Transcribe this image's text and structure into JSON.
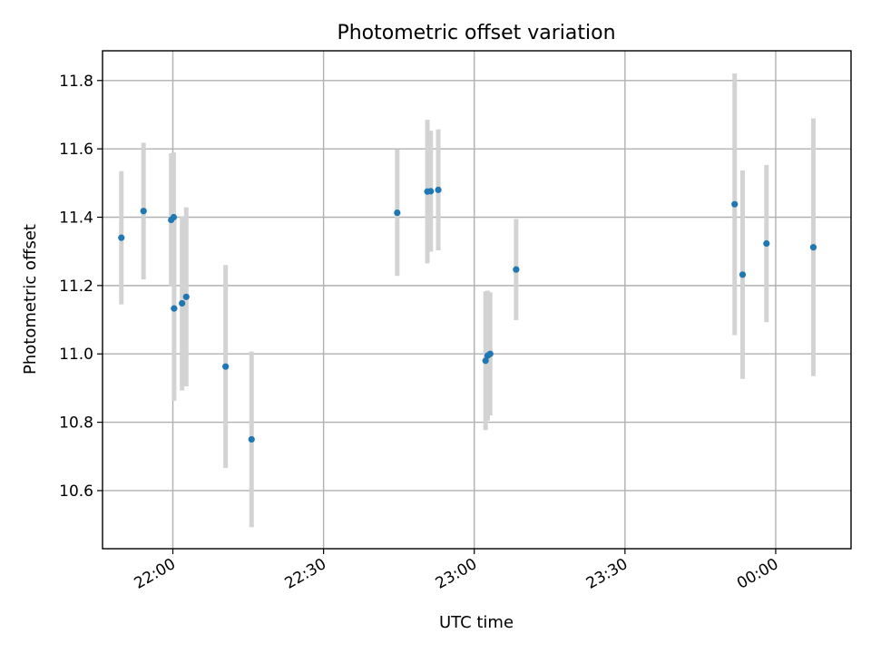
{
  "chart_data": {
    "type": "scatter",
    "title": "Photometric offset variation",
    "xlabel": "UTC time",
    "ylabel": "Photometric offset",
    "x_scale": "time",
    "xlim": [
      "21:46",
      "00:15"
    ],
    "ylim": [
      10.43,
      11.887
    ],
    "x_ticks": [
      {
        "value": "22:00",
        "label": "22:00"
      },
      {
        "value": "22:30",
        "label": "22:30"
      },
      {
        "value": "23:00",
        "label": "23:00"
      },
      {
        "value": "23:30",
        "label": "23:30"
      },
      {
        "value": "00:00",
        "label": "00:00"
      }
    ],
    "y_ticks": [
      {
        "value": 10.6,
        "label": "10.6"
      },
      {
        "value": 10.8,
        "label": "10.8"
      },
      {
        "value": 11.0,
        "label": "11.0"
      },
      {
        "value": 11.2,
        "label": "11.2"
      },
      {
        "value": 11.4,
        "label": "11.4"
      },
      {
        "value": 11.6,
        "label": "11.6"
      },
      {
        "value": 11.8,
        "label": "11.8"
      }
    ],
    "grid": true,
    "marker_color": "#1f77b4",
    "errorbar_color": "#d3d3d3",
    "points": [
      {
        "x": "21:49:45",
        "y": 11.34,
        "err": 0.195
      },
      {
        "x": "21:54:10",
        "y": 11.418,
        "err": 0.2
      },
      {
        "x": "21:59:40",
        "y": 11.392,
        "err": 0.195
      },
      {
        "x": "21:60:10",
        "y": 11.4,
        "err": 0.19
      },
      {
        "x": "22:00:15",
        "y": 11.133,
        "err": 0.27
      },
      {
        "x": "22:01:50",
        "y": 11.148,
        "err": 0.255
      },
      {
        "x": "22:02:40",
        "y": 11.167,
        "err": 0.262
      },
      {
        "x": "22:10:30",
        "y": 10.963,
        "err": 0.297
      },
      {
        "x": "22:15:40",
        "y": 10.75,
        "err": 0.257
      },
      {
        "x": "22:44:40",
        "y": 11.413,
        "err": 0.185
      },
      {
        "x": "22:50:40",
        "y": 11.475,
        "err": 0.21
      },
      {
        "x": "22:51:20",
        "y": 11.476,
        "err": 0.177
      },
      {
        "x": "22:52:50",
        "y": 11.48,
        "err": 0.177
      },
      {
        "x": "23:02:15",
        "y": 10.98,
        "err": 0.203
      },
      {
        "x": "23:02:40",
        "y": 10.995,
        "err": 0.19
      },
      {
        "x": "23:03:10",
        "y": 11.0,
        "err": 0.18
      },
      {
        "x": "23:08:20",
        "y": 11.247,
        "err": 0.148
      },
      {
        "x": "23:51:50",
        "y": 11.438,
        "err": 0.383
      },
      {
        "x": "23:53:25",
        "y": 11.232,
        "err": 0.305
      },
      {
        "x": "23:58:10",
        "y": 11.323,
        "err": 0.23
      },
      {
        "x": "00:07:30",
        "y": 11.312,
        "err": 0.377
      }
    ]
  }
}
